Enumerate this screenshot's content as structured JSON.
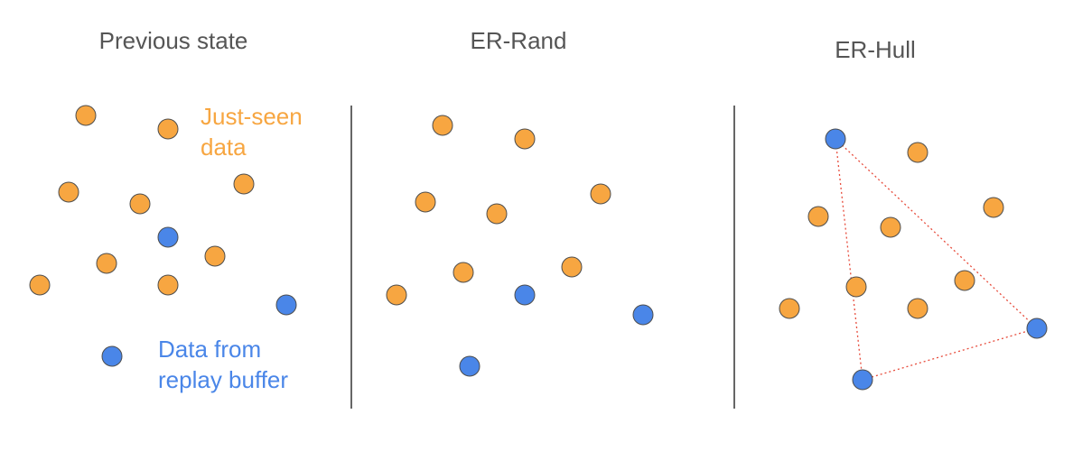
{
  "colors": {
    "just_seen": "#F7A641",
    "replay": "#4A86E8",
    "outline": "#4d4d4d",
    "hull_line": "#E74C3C",
    "title_text": "#555555",
    "divider": "#666666"
  },
  "panels": [
    {
      "title": "Previous state"
    },
    {
      "title": "ER-Rand"
    },
    {
      "title": "ER-Hull"
    }
  ],
  "legend": {
    "just_seen_line1": "Just-seen",
    "just_seen_line2": "data",
    "replay_line1": "Data from",
    "replay_line2": "replay buffer"
  }
}
